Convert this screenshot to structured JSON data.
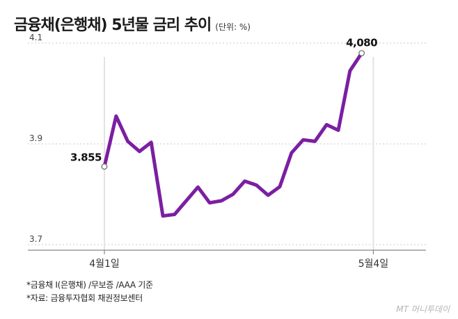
{
  "chart_data": {
    "type": "line",
    "title": "금융채(은행채) 5년물 금리 추이",
    "unit_label": "(단위: %)",
    "ylim": [
      3.7,
      4.1
    ],
    "yticks": [
      {
        "value": 3.7,
        "label": "3.7"
      },
      {
        "value": 3.9,
        "label": "3.9"
      },
      {
        "value": 4.1,
        "label": "4.1"
      }
    ],
    "xticks": [
      {
        "index": 0,
        "label": "4월1일"
      },
      {
        "index": 23,
        "label": "5월4일"
      }
    ],
    "series": [
      {
        "color": "#7b1fa2",
        "values": [
          3.855,
          3.955,
          3.905,
          3.885,
          3.903,
          3.757,
          3.76,
          3.787,
          3.814,
          3.783,
          3.787,
          3.8,
          3.826,
          3.818,
          3.798,
          3.815,
          3.882,
          3.908,
          3.905,
          3.938,
          3.927,
          4.045,
          4.08
        ]
      }
    ],
    "annotations": [
      {
        "index": 0,
        "label": "3.855"
      },
      {
        "index": 22,
        "label": "4,080"
      }
    ]
  },
  "notes": {
    "line1": "*금융채 I(은행채) /무보증 /AAA 기준",
    "line2": "*자료: 금융투자협회 채권정보센터"
  },
  "brand": "MT 머니투데이"
}
